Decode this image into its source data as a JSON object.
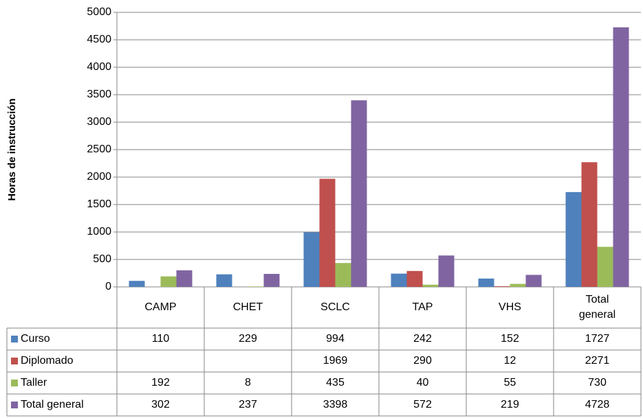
{
  "chart_data": {
    "type": "bar",
    "ylabel": "Horas de instrucción",
    "categories": [
      "CAMP",
      "CHET",
      "SCLC",
      "TAP",
      "VHS",
      "Total general"
    ],
    "series": [
      {
        "name": "Curso",
        "color": "#4f81bd",
        "values": [
          110,
          229,
          994,
          242,
          152,
          1727
        ]
      },
      {
        "name": "Diplomado",
        "color": "#c0504d",
        "values": [
          null,
          null,
          1969,
          290,
          12,
          2271
        ]
      },
      {
        "name": "Taller",
        "color": "#9bbb59",
        "values": [
          192,
          8,
          435,
          40,
          55,
          730
        ]
      },
      {
        "name": "Total general",
        "color": "#8064a2",
        "values": [
          302,
          237,
          3398,
          572,
          219,
          4728
        ]
      }
    ],
    "ylim": [
      0,
      5000
    ],
    "yticks": [
      0,
      500,
      1000,
      1500,
      2000,
      2500,
      3000,
      3500,
      4000,
      4500,
      5000
    ],
    "grid": true,
    "data_table": true
  }
}
